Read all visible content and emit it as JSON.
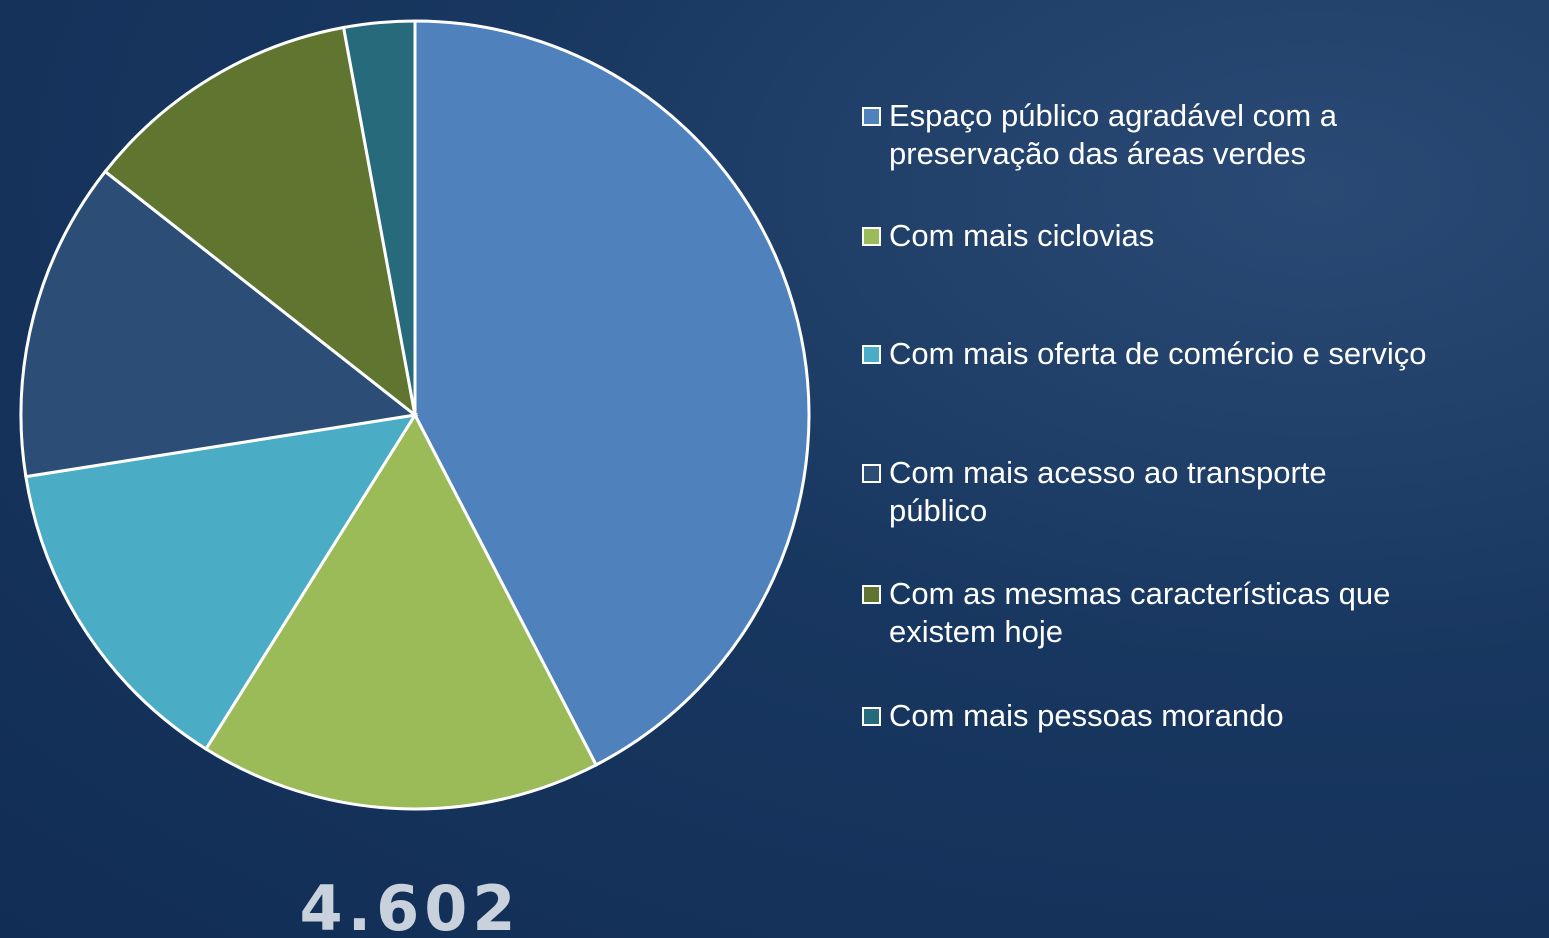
{
  "chart_data": {
    "type": "pie",
    "categories": [
      "Espaço público agradável com a preservação das áreas verdes",
      "Com mais ciclovias",
      "Com mais oferta de comércio e serviço",
      "Com mais acesso ao transporte público",
      "Com as mesmas características que existem hoje",
      "Com mais pessoas morando"
    ],
    "values": [
      42.4,
      16.5,
      13.6,
      13.1,
      11.5,
      2.9
    ],
    "colors": [
      "#4f81bd",
      "#9bbb59",
      "#4bacc6",
      "#2c4d75",
      "#5f7530",
      "#276a7c"
    ],
    "annotation": "4.602"
  }
}
